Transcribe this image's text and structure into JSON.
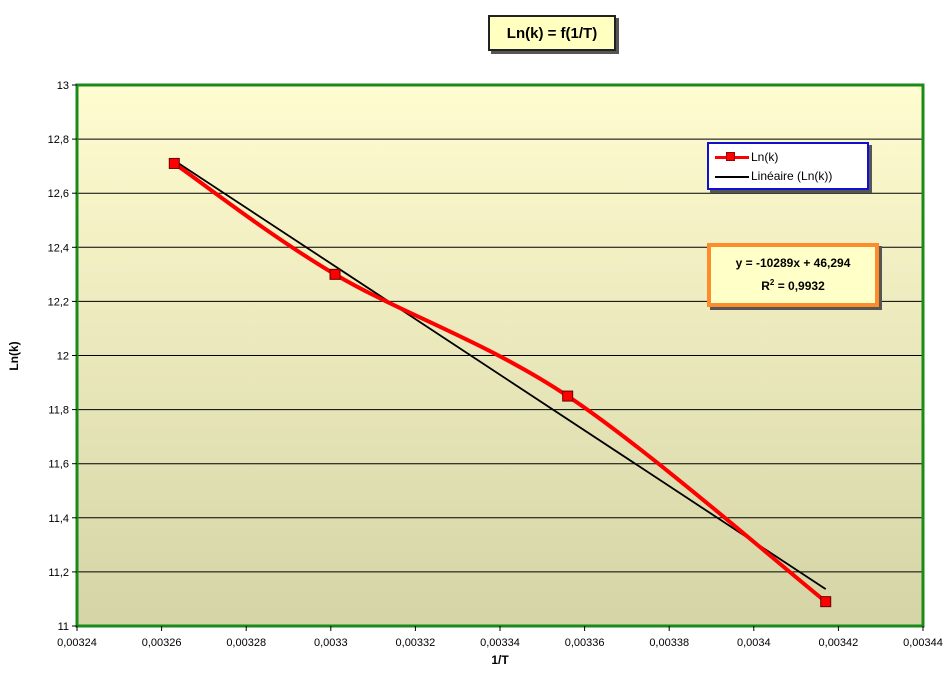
{
  "chart_data": {
    "type": "scatter",
    "title": "Ln(k) = f(1/T)",
    "xlabel": "1/T",
    "ylabel": "Ln(k)",
    "xlim": [
      0.00324,
      0.00344
    ],
    "ylim": [
      11,
      13
    ],
    "x_ticks": [
      0.00324,
      0.00326,
      0.00328,
      0.0033,
      0.00332,
      0.00334,
      0.00336,
      0.00338,
      0.0034,
      0.00342,
      0.00344
    ],
    "x_tick_labels": [
      "0,00324",
      "0,00326",
      "0,00328",
      "0,0033",
      "0,00332",
      "0,00334",
      "0,00336",
      "0,00338",
      "0,0034",
      "0,00342",
      "0,00344"
    ],
    "y_ticks": [
      11,
      11.2,
      11.4,
      11.6,
      11.8,
      12,
      12.2,
      12.4,
      12.6,
      12.8,
      13
    ],
    "y_tick_labels": [
      "11",
      "11,2",
      "11,4",
      "11,6",
      "11,8",
      "12",
      "12,2",
      "12,4",
      "12,6",
      "12,8",
      "13"
    ],
    "grid": "horizontal",
    "legend_position": "top-right",
    "series": [
      {
        "name": "Ln(k)",
        "color": "#ff0000",
        "style": "smooth-line-markers",
        "points": [
          {
            "x": 0.003263,
            "y": 12.71
          },
          {
            "x": 0.003301,
            "y": 12.3
          },
          {
            "x": 0.003356,
            "y": 11.85
          },
          {
            "x": 0.003417,
            "y": 11.09
          }
        ]
      }
    ],
    "trendline": {
      "name": "Linéaire (Ln(k))",
      "color": "#000000",
      "slope": -10289,
      "intercept": 46.294,
      "x_range": [
        0.003263,
        0.003417
      ],
      "equation_label": "y = -10289x + 46,294",
      "r2_prefix": "R",
      "r2_sup": "2",
      "r2_value": " = 0,9932"
    },
    "colors": {
      "plot_top": "#fffcd0",
      "plot_bottom": "#d4d4a6",
      "plot_border": "#1a8a1a"
    }
  }
}
